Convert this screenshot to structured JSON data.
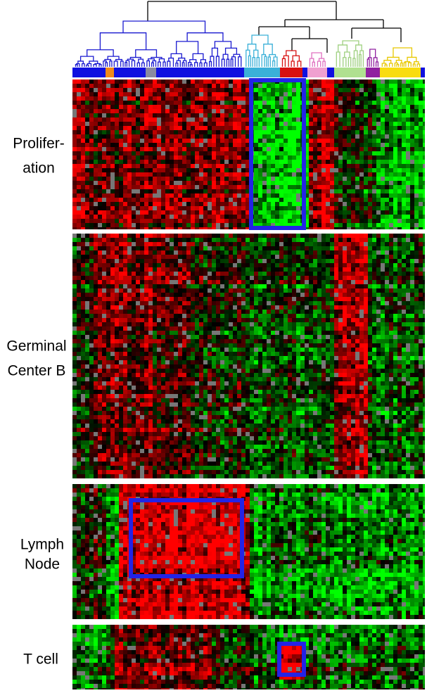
{
  "panels": [
    {
      "label_lines": [
        "Prolifer-",
        "ation"
      ]
    },
    {
      "label_lines": [
        "Germinal",
        "Center B"
      ]
    },
    {
      "label_lines": [
        "Lymph",
        "Node"
      ]
    },
    {
      "label_lines": [
        "T cell"
      ]
    }
  ]
}
